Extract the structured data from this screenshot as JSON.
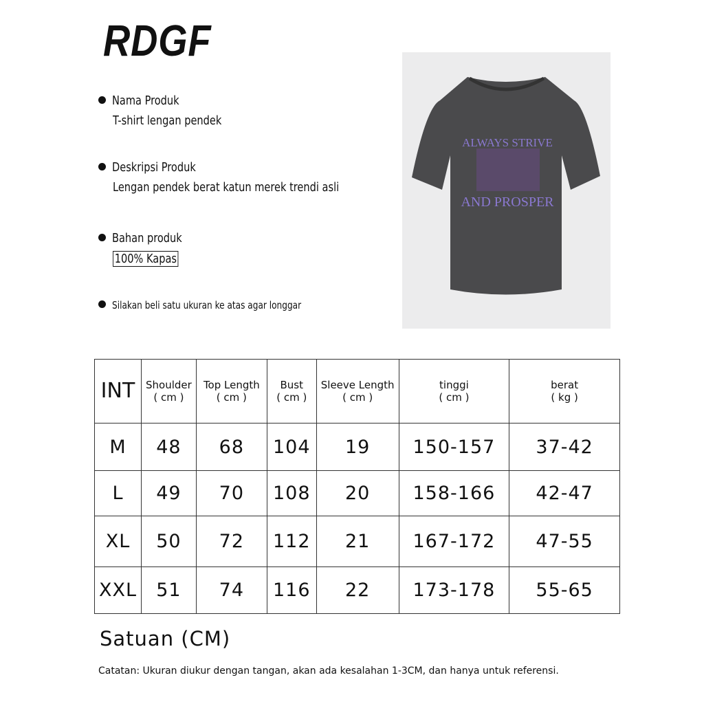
{
  "brand": "RDGF",
  "info": [
    {
      "label": "Nama Produk",
      "value": "T-shirt lengan pendek"
    },
    {
      "label": "Deskripsi Produk",
      "value": "Lengan pendek berat katun merek trendi asli"
    },
    {
      "label": "Bahan produk",
      "value": "100% Kapas"
    },
    {
      "label": "Silakan beli satu ukuran ke atas agar longgar"
    }
  ],
  "product_image": {
    "print_top": "ALWAYS STRIVE",
    "print_bottom": "AND PROSPER",
    "shirt_color": "#4a4a4c",
    "print_color": "#8a78d0"
  },
  "size_table": {
    "headers": [
      {
        "name": "INT"
      },
      {
        "name": "Shoulder",
        "unit": "( cm )"
      },
      {
        "name": "Top Length",
        "unit": "( cm )"
      },
      {
        "name": "Bust",
        "unit": "( cm )"
      },
      {
        "name": "Sleeve Length",
        "unit": "( cm )"
      },
      {
        "name": "tinggi",
        "unit": "( cm )"
      },
      {
        "name": "berat",
        "unit": "( kg )"
      }
    ],
    "rows": [
      [
        "M",
        "48",
        "68",
        "104",
        "19",
        "150-157",
        "37-42"
      ],
      [
        "L",
        "49",
        "70",
        "108",
        "20",
        "158-166",
        "42-47"
      ],
      [
        "XL",
        "50",
        "72",
        "112",
        "21",
        "167-172",
        "47-55"
      ],
      [
        "XXL",
        "51",
        "74",
        "116",
        "22",
        "173-178",
        "55-65"
      ]
    ]
  },
  "unit_note": "Satuan (CM)",
  "footnote": "Catatan: Ukuran diukur dengan tangan, akan ada kesalahan 1-3CM, dan hanya untuk referensi."
}
